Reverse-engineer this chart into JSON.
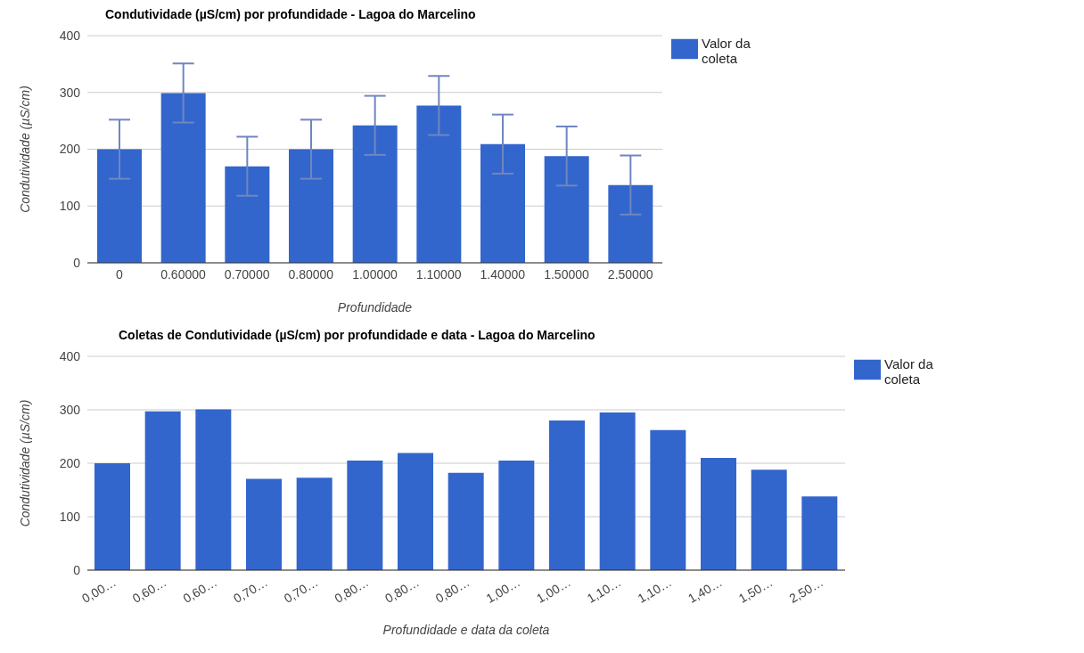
{
  "chart_data": [
    {
      "type": "bar",
      "title": "Condutividade (µS/cm) por profundidade - Lagoa do Marcelino",
      "xlabel": "Profundidade",
      "ylabel": "Condutividade (µS/cm)",
      "categories": [
        "0",
        "0.60000",
        "0.70000",
        "0.80000",
        "1.00000",
        "1.10000",
        "1.40000",
        "1.50000",
        "2.50000"
      ],
      "series": [
        {
          "name": "Valor da coleta",
          "color": "#3366cc",
          "values": [
            200,
            299,
            170,
            200,
            242,
            277,
            209,
            188,
            137
          ],
          "errors": [
            52,
            52,
            52,
            52,
            52,
            52,
            52,
            52,
            52
          ]
        }
      ],
      "ylim": [
        0,
        400
      ],
      "yticks": [
        0,
        100,
        200,
        300,
        400
      ],
      "grid": "y",
      "legend": "top right"
    },
    {
      "type": "bar",
      "title": "Coletas de Condutividade (µS/cm) por profundidade e data - Lagoa do Marcelino",
      "xlabel": "Profundidade e data da coleta",
      "ylabel": "Condutividade (µS/cm)",
      "categories": [
        "0,00…",
        "0,60…",
        "0,60…",
        "0,70…",
        "0,70…",
        "0,80…",
        "0,80…",
        "0,80…",
        "1,00…",
        "1,00…",
        "1,10…",
        "1,10…",
        "1,40…",
        "1,50…",
        "2,50…"
      ],
      "series": [
        {
          "name": "Valor da coleta",
          "color": "#3366cc",
          "values": [
            200,
            297,
            301,
            171,
            173,
            205,
            219,
            182,
            205,
            280,
            295,
            262,
            210,
            188,
            138
          ]
        }
      ],
      "ylim": [
        0,
        400
      ],
      "yticks": [
        0,
        100,
        200,
        300,
        400
      ],
      "grid": "y",
      "legend": "top right"
    }
  ]
}
